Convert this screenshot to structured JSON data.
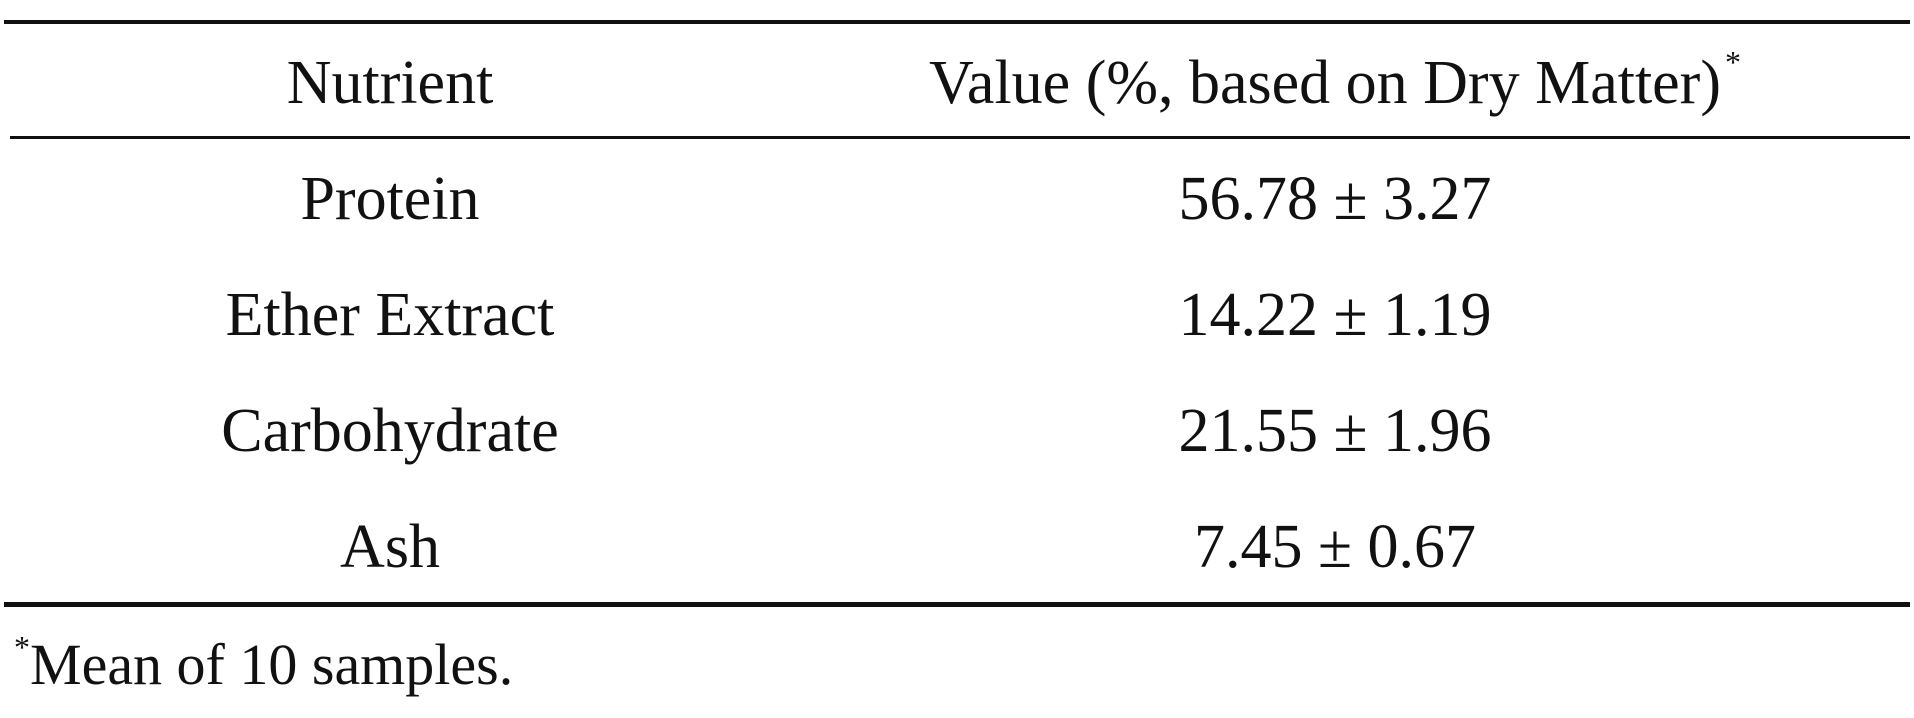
{
  "table": {
    "headers": {
      "nutrient": "Nutrient",
      "value": "Value (%, based on Dry Matter)",
      "value_marker": "*"
    },
    "rows": [
      {
        "nutrient": "Protein",
        "value": "56.78 ± 3.27"
      },
      {
        "nutrient": "Ether Extract",
        "value": "14.22 ± 1.19"
      },
      {
        "nutrient": "Carbohydrate",
        "value": "21.55 ± 1.96"
      },
      {
        "nutrient": "Ash",
        "value": "7.45 ± 0.67"
      }
    ]
  },
  "footnote": {
    "marker": "*",
    "text": "Mean of 10 samples."
  }
}
